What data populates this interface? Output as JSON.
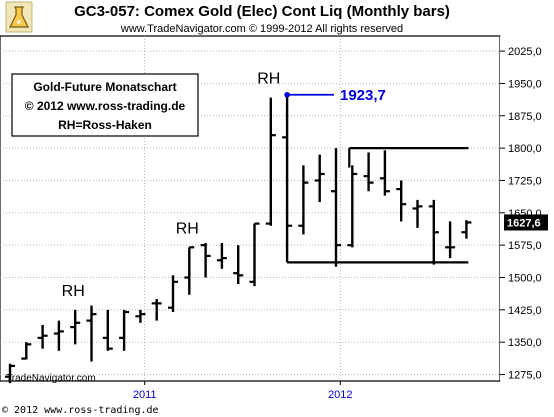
{
  "header": {
    "title": "GC3-057:  Comex Gold (Elec) Cont Liq  (Monthly bars)",
    "copyright": "www.TradeNavigator.com © 1999-2012 All rights reserved"
  },
  "info_box": {
    "line1": "Gold-Future Monatschart",
    "line2": "© 2012  www.ross-trading.de",
    "line3": "RH=Ross-Haken"
  },
  "footer": {
    "brand": "TradeNavigator.com",
    "credit": "© 2012  www.ross-trading.de"
  },
  "icons": {
    "logo": "flask-icon"
  },
  "colors": {
    "peak_line": "#0000dd",
    "price_box": "#000000",
    "x_tick": "#0000cc"
  },
  "chart_data": {
    "type": "ohlc",
    "y_scale": "linear",
    "ylim": [
      1260,
      2060
    ],
    "y_ticks": [
      1275,
      1350,
      1425,
      1500,
      1575,
      1650,
      1725,
      1800,
      1875,
      1950,
      2025
    ],
    "y_tick_labels": [
      "1275,0",
      "1350,0",
      "1425,0",
      "1500,0",
      "1575,0",
      "1650,0",
      "1725,0",
      "1800,0",
      "1875,0",
      "1950,0",
      "2025,0"
    ],
    "x_ticks": [
      {
        "index": 9,
        "label": "2011"
      },
      {
        "index": 21,
        "label": "2012"
      }
    ],
    "bars": [
      {
        "o": 1270,
        "h": 1300,
        "l": 1255,
        "c": 1295
      },
      {
        "o": 1312,
        "h": 1350,
        "l": 1310,
        "c": 1345
      },
      {
        "o": 1360,
        "h": 1390,
        "l": 1335,
        "c": 1365
      },
      {
        "o": 1370,
        "h": 1400,
        "l": 1330,
        "c": 1375
      },
      {
        "o": 1385,
        "h": 1425,
        "l": 1345,
        "c": 1395
      },
      {
        "o": 1400,
        "h": 1435,
        "l": 1305,
        "c": 1415
      },
      {
        "o": 1360,
        "h": 1425,
        "l": 1330,
        "c": 1335
      },
      {
        "o": 1360,
        "h": 1425,
        "l": 1330,
        "c": 1420
      },
      {
        "o": 1410,
        "h": 1425,
        "l": 1395,
        "c": 1415
      },
      {
        "o": 1440,
        "h": 1450,
        "l": 1400,
        "c": 1440
      },
      {
        "o": 1430,
        "h": 1505,
        "l": 1420,
        "c": 1490
      },
      {
        "o": 1500,
        "h": 1570,
        "l": 1460,
        "c": 1570
      },
      {
        "o": 1575,
        "h": 1580,
        "l": 1500,
        "c": 1550
      },
      {
        "o": 1540,
        "h": 1580,
        "l": 1520,
        "c": 1545
      },
      {
        "o": 1510,
        "h": 1575,
        "l": 1485,
        "c": 1505
      },
      {
        "o": 1490,
        "h": 1625,
        "l": 1480,
        "c": 1625
      },
      {
        "o": 1625,
        "h": 1917,
        "l": 1620,
        "c": 1830
      },
      {
        "o": 1825,
        "h": 1923.7,
        "l": 1535,
        "c": 1620
      },
      {
        "o": 1620,
        "h": 1760,
        "l": 1600,
        "c": 1720
      },
      {
        "o": 1725,
        "h": 1785,
        "l": 1675,
        "c": 1740
      },
      {
        "o": 1700,
        "h": 1800,
        "l": 1525,
        "c": 1575
      },
      {
        "o": 1575,
        "h": 1760,
        "l": 1570,
        "c": 1740
      },
      {
        "o": 1735,
        "h": 1790,
        "l": 1700,
        "c": 1720
      },
      {
        "o": 1730,
        "h": 1795,
        "l": 1690,
        "c": 1700
      },
      {
        "o": 1705,
        "h": 1725,
        "l": 1630,
        "c": 1670
      },
      {
        "o": 1660,
        "h": 1680,
        "l": 1615,
        "c": 1665
      },
      {
        "o": 1665,
        "h": 1680,
        "l": 1530,
        "c": 1605
      },
      {
        "o": 1570,
        "h": 1630,
        "l": 1545,
        "c": 1570
      },
      {
        "o": 1605,
        "h": 1633,
        "l": 1590,
        "c": 1627.6
      }
    ],
    "annotations": [
      {
        "label": "RH",
        "bar": 4,
        "anchor": "above-high"
      },
      {
        "label": "RH",
        "bar": 11,
        "anchor": "above-high"
      },
      {
        "label": "RH",
        "bar": 16,
        "anchor": "above-high"
      }
    ],
    "peak": {
      "label": "1923,7",
      "bar": 17,
      "value": 1923.7
    },
    "range_box": {
      "top": 1800,
      "bottom": 1535,
      "from_bar": 17,
      "to_bar": 28,
      "top_from_bar": 21
    },
    "last_price": {
      "value": 1627.6,
      "label": "1627,6"
    }
  }
}
